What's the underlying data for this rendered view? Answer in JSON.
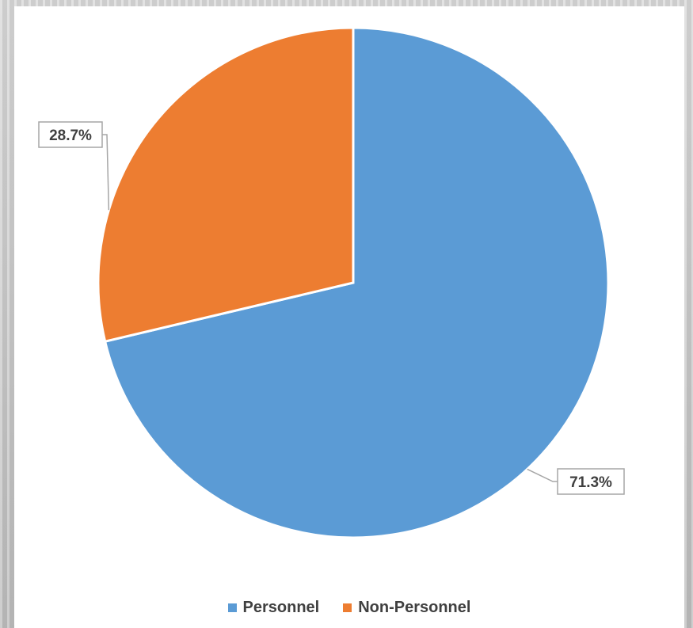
{
  "chart_data": {
    "type": "pie",
    "title": "",
    "categories": [
      "Personnel",
      "Non-Personnel"
    ],
    "values": [
      71.3,
      28.7
    ],
    "labels": [
      "71.3%",
      "28.7%"
    ],
    "colors": [
      "#5B9BD5",
      "#ED7D31"
    ],
    "legend_placement": "bottom"
  },
  "legend": {
    "items": [
      {
        "label": "Personnel",
        "color": "#5B9BD5"
      },
      {
        "label": "Non-Personnel",
        "color": "#ED7D31"
      }
    ]
  }
}
